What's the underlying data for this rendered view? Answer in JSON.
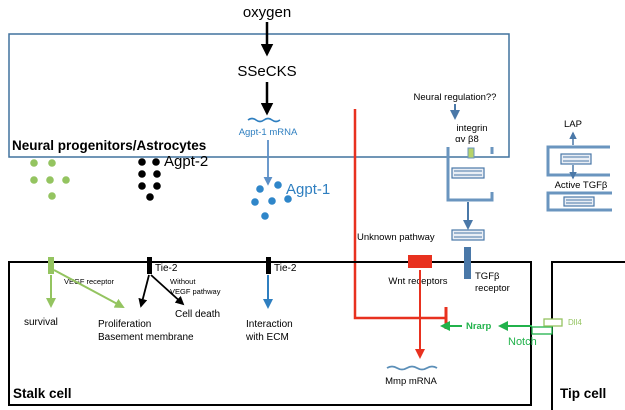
{
  "labels": {
    "oxygen": "oxygen",
    "ssecks": "SSeCKS",
    "agpt1_mrna": "Agpt-1 mRNA",
    "neural_regulation": "Neural regulation??",
    "integrin": "integrin",
    "integrin_sub": "αv β8",
    "neural_box_title": "Neural progenitors/Astrocytes",
    "lap": "LAP",
    "active_tgfb": "Active TGFβ",
    "agpt2": "Agpt-2",
    "agpt1": "Agpt-1",
    "vegf_receptor": "VEGF receptor",
    "tie2_left": "Tie-2",
    "tie2_right": "Tie-2",
    "without_line1": "Without",
    "without_line2": "VEGF pathway",
    "unknown_pathway": "Unknown pathway",
    "wnt_receptors": "Wnt receptors",
    "tgfb_receptor_line1": "TGFβ",
    "tgfb_receptor_line2": "receptor",
    "survival": "survival",
    "proliferation": "Proliferation",
    "basement_membrane": "Basement membrane",
    "cell_death": "Cell death",
    "interaction_line1": "Interaction",
    "interaction_line2": "with ECM",
    "nrarp": "Nrarp",
    "notch": "Notch",
    "dll4": "Dll4",
    "mmp_mrna": "Mmp mRNA",
    "stalk_cell": "Stalk cell",
    "tip_cell": "Tip cell"
  },
  "colors": {
    "black": "#000000",
    "blue": "#2f7fc0",
    "box_blue": "#41729e",
    "receptor_blue": "#4a78a8",
    "green": "#94c460",
    "green_dark": "#7aa84a",
    "red": "#e8311f",
    "notch_green": "#21b24b",
    "mmp_wave": "#5b8fb8"
  }
}
